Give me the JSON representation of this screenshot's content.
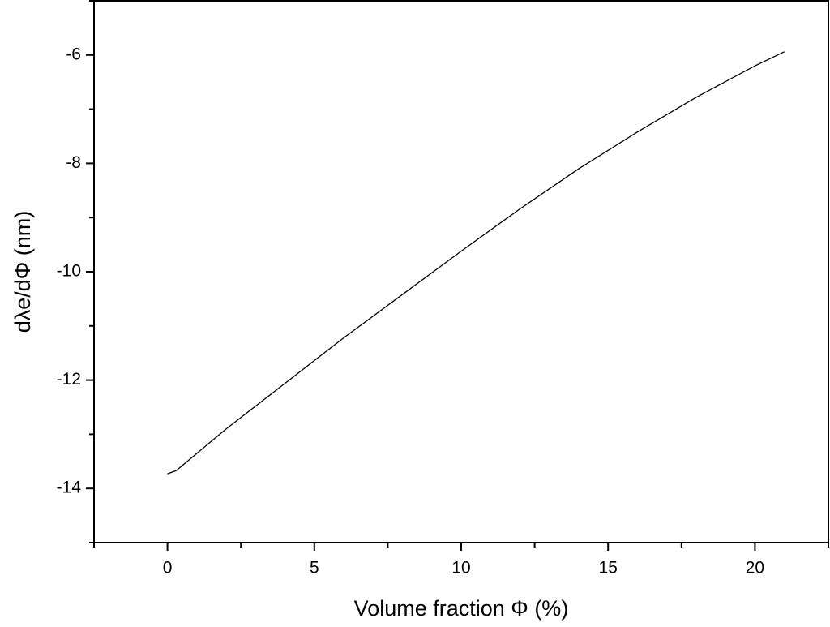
{
  "chart_data": {
    "type": "line",
    "xlabel": "Volume fraction Φ (%)",
    "ylabel": "dλe/dΦ (nm)",
    "x": [
      0,
      0.3,
      2,
      4,
      6,
      8,
      10,
      12,
      14,
      16,
      18,
      20,
      21
    ],
    "series": [
      {
        "color": "#000000",
        "values": [
          -13.73,
          -13.67,
          -12.9,
          -12.06,
          -11.22,
          -10.42,
          -9.62,
          -8.84,
          -8.1,
          -7.42,
          -6.78,
          -6.2,
          -5.94
        ]
      }
    ],
    "xlim": [
      -2.5,
      22.5
    ],
    "xticks": [
      0,
      5,
      10,
      15,
      20
    ],
    "xminorticks": [
      -2.5,
      2.5,
      7.5,
      12.5,
      17.5,
      22.5
    ],
    "ylim": [
      -15,
      -5
    ],
    "yticks": [
      -14,
      -12,
      -10,
      -8,
      -6
    ],
    "yminorticks": [
      -15,
      -13,
      -11,
      -9,
      -7,
      -5
    ]
  }
}
